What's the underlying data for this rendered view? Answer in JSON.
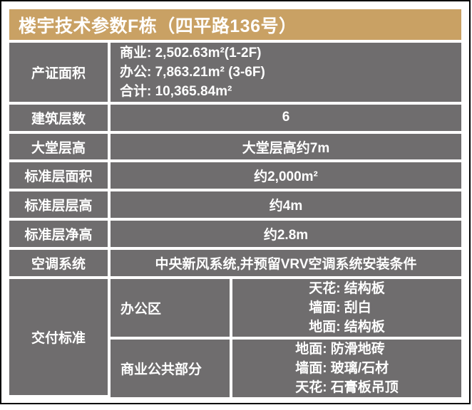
{
  "colors": {
    "gold": "#C9A164",
    "gray": "#6F6D6E",
    "text": "#FFFFFF",
    "frame_border": "#000000"
  },
  "header": {
    "title": "楼宇技术参数F栋（四平路136号）"
  },
  "rows": [
    {
      "label": "产证面积",
      "lines": [
        "商业: 2,502.63m²(1-2F)",
        "办公: 7,863.21m² (3-6F)",
        "合计: 10,365.84m²"
      ]
    },
    {
      "label": "建筑层数",
      "value": "6"
    },
    {
      "label": "大堂层高",
      "value": "大堂层高约7m"
    },
    {
      "label": "标准层面积",
      "value": "约2,000m²"
    },
    {
      "label": "标准层层高",
      "value": "约4m"
    },
    {
      "label": "标准层净高",
      "value": "约2.8m"
    },
    {
      "label": "空调系统",
      "value": "中央新风系统,并预留VRV空调系统安装条件"
    }
  ],
  "delivery": {
    "label": "交付标准",
    "sections": [
      {
        "area": "办公区",
        "lines": [
          "天花: 结构板",
          "墙面: 刮白",
          "地面: 结构板"
        ]
      },
      {
        "area": "商业公共部分",
        "lines": [
          "地面: 防滑地砖",
          "墙面: 玻璃/石材",
          "天花: 石膏板吊顶"
        ]
      }
    ]
  }
}
